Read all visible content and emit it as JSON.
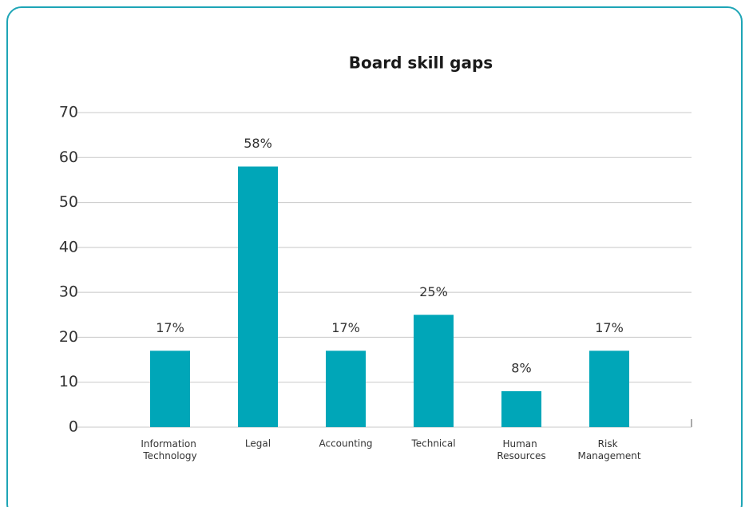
{
  "chart_data": {
    "type": "bar",
    "title": "Board skill gaps",
    "categories": [
      "Information Technology",
      "Legal",
      "Accounting",
      "Technical",
      "Human Resources",
      "Risk Management"
    ],
    "values": [
      17,
      58,
      17,
      25,
      8,
      17
    ],
    "value_labels": [
      "17%",
      "58%",
      "17%",
      "25%",
      "8%",
      "17%"
    ],
    "color": "#00a6b8",
    "ylim": [
      0,
      70
    ],
    "yticks": [
      0,
      10,
      20,
      30,
      40,
      50,
      60,
      70
    ],
    "grid": true
  }
}
